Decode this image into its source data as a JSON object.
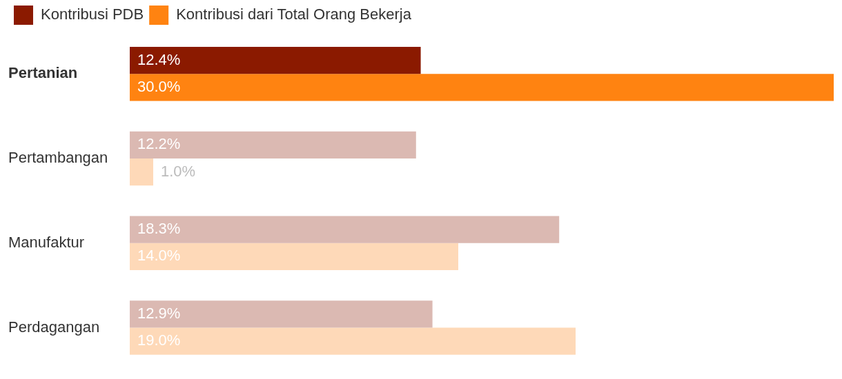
{
  "chart_data": {
    "type": "bar",
    "orientation": "horizontal",
    "legend": "top left",
    "categories": [
      "Pertanian",
      "Pertambangan",
      "Manufaktur",
      "Perdagangan"
    ],
    "series": [
      {
        "name": "Kontribusi PDB",
        "color": "#8b1a00",
        "colors": [
          "#8b1a00",
          "#dbb9b2",
          "#dbb9b2",
          "#dbb9b2"
        ],
        "values": [
          12.4,
          12.2,
          18.3,
          12.9
        ],
        "value_labels": [
          "12.4%",
          "12.2%",
          "18.3%",
          "12.9%"
        ]
      },
      {
        "name": "Kontribusi dari Total Orang Bekerja",
        "color": "#ff8311",
        "colors": [
          "#ff8311",
          "#fed9b8",
          "#fed9b8",
          "#fed9b8"
        ],
        "values": [
          30.0,
          1.0,
          14.0,
          19.0
        ],
        "value_labels": [
          "30.0%",
          "1.0%",
          "14.0%",
          "19.0%"
        ]
      }
    ]
  }
}
